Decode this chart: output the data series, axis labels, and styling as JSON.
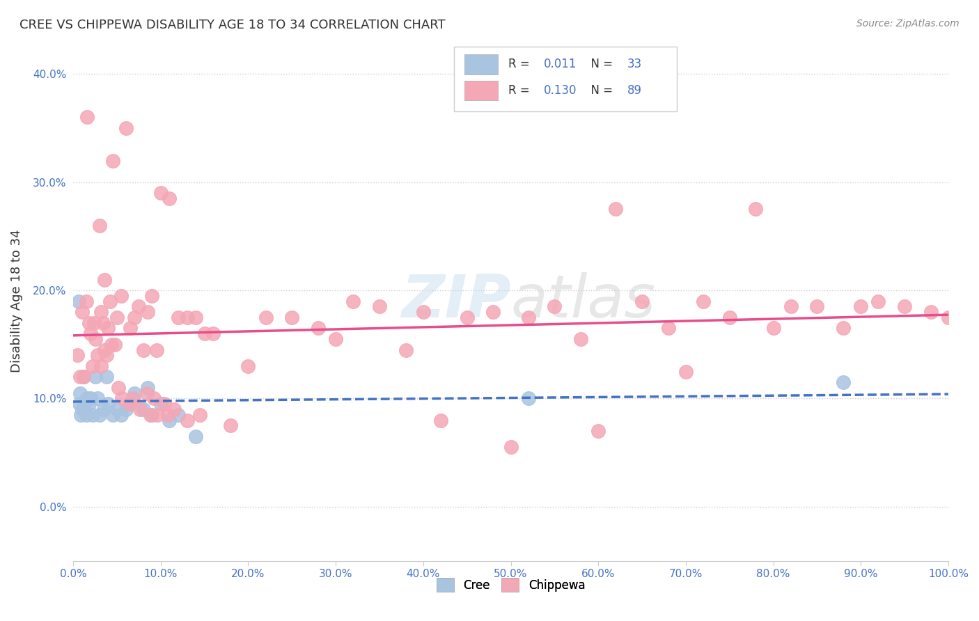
{
  "title": "CREE VS CHIPPEWA DISABILITY AGE 18 TO 34 CORRELATION CHART",
  "source": "Source: ZipAtlas.com",
  "ylabel": "Disability Age 18 to 34",
  "xlim": [
    0,
    1.0
  ],
  "ylim": [
    -0.05,
    0.43
  ],
  "xticks": [
    0.0,
    0.1,
    0.2,
    0.3,
    0.4,
    0.5,
    0.6,
    0.7,
    0.8,
    0.9,
    1.0
  ],
  "xticklabels": [
    "0.0%",
    "10.0%",
    "20.0%",
    "30.0%",
    "40.0%",
    "50.0%",
    "60.0%",
    "70.0%",
    "80.0%",
    "90.0%",
    "100.0%"
  ],
  "yticks": [
    0.0,
    0.1,
    0.2,
    0.3,
    0.4
  ],
  "yticklabels": [
    "0.0%",
    "10.0%",
    "20.0%",
    "30.0%",
    "40.0%"
  ],
  "cree_color": "#a8c4e0",
  "chippewa_color": "#f4a7b5",
  "cree_line_color": "#4472c4",
  "chippewa_line_color": "#e84c8b",
  "background_color": "#ffffff",
  "watermark_zip": "ZIP",
  "watermark_atlas": "atlas",
  "cree_R": "0.011",
  "cree_N": "33",
  "chippewa_R": "0.130",
  "chippewa_N": "89",
  "cree_x": [
    0.006,
    0.007,
    0.008,
    0.009,
    0.01,
    0.012,
    0.013,
    0.015,
    0.016,
    0.018,
    0.02,
    0.022,
    0.025,
    0.028,
    0.03,
    0.035,
    0.038,
    0.04,
    0.045,
    0.05,
    0.055,
    0.06,
    0.065,
    0.07,
    0.08,
    0.085,
    0.09,
    0.1,
    0.11,
    0.12,
    0.14,
    0.52,
    0.88
  ],
  "cree_y": [
    0.19,
    0.095,
    0.105,
    0.085,
    0.09,
    0.12,
    0.09,
    0.085,
    0.1,
    0.095,
    0.1,
    0.085,
    0.12,
    0.1,
    0.085,
    0.09,
    0.12,
    0.095,
    0.085,
    0.09,
    0.085,
    0.09,
    0.095,
    0.105,
    0.09,
    0.11,
    0.085,
    0.095,
    0.08,
    0.085,
    0.065,
    0.1,
    0.115
  ],
  "chippewa_x": [
    0.005,
    0.01,
    0.015,
    0.018,
    0.02,
    0.022,
    0.025,
    0.028,
    0.03,
    0.032,
    0.034,
    0.036,
    0.038,
    0.04,
    0.042,
    0.045,
    0.048,
    0.05,
    0.055,
    0.06,
    0.065,
    0.07,
    0.075,
    0.08,
    0.085,
    0.09,
    0.095,
    0.1,
    0.11,
    0.12,
    0.13,
    0.14,
    0.15,
    0.16,
    0.18,
    0.2,
    0.22,
    0.25,
    0.28,
    0.3,
    0.32,
    0.35,
    0.38,
    0.4,
    0.42,
    0.45,
    0.48,
    0.5,
    0.52,
    0.55,
    0.58,
    0.6,
    0.62,
    0.65,
    0.68,
    0.7,
    0.72,
    0.75,
    0.78,
    0.8,
    0.82,
    0.85,
    0.88,
    0.9,
    0.92,
    0.95,
    0.98,
    1.0,
    0.008,
    0.012,
    0.016,
    0.024,
    0.032,
    0.036,
    0.044,
    0.052,
    0.056,
    0.064,
    0.068,
    0.076,
    0.084,
    0.088,
    0.092,
    0.096,
    0.104,
    0.108,
    0.115,
    0.13,
    0.145
  ],
  "chippewa_y": [
    0.14,
    0.18,
    0.19,
    0.17,
    0.16,
    0.13,
    0.155,
    0.14,
    0.26,
    0.18,
    0.17,
    0.21,
    0.14,
    0.165,
    0.19,
    0.32,
    0.15,
    0.175,
    0.195,
    0.35,
    0.165,
    0.175,
    0.185,
    0.145,
    0.18,
    0.195,
    0.145,
    0.29,
    0.285,
    0.175,
    0.175,
    0.175,
    0.16,
    0.16,
    0.075,
    0.13,
    0.175,
    0.175,
    0.165,
    0.155,
    0.19,
    0.185,
    0.145,
    0.18,
    0.08,
    0.175,
    0.18,
    0.055,
    0.175,
    0.185,
    0.155,
    0.07,
    0.275,
    0.19,
    0.165,
    0.125,
    0.19,
    0.175,
    0.275,
    0.165,
    0.185,
    0.185,
    0.165,
    0.185,
    0.19,
    0.185,
    0.18,
    0.175,
    0.12,
    0.12,
    0.36,
    0.17,
    0.13,
    0.145,
    0.15,
    0.11,
    0.1,
    0.095,
    0.1,
    0.09,
    0.105,
    0.085,
    0.1,
    0.085,
    0.095,
    0.085,
    0.09,
    0.08,
    0.085
  ]
}
